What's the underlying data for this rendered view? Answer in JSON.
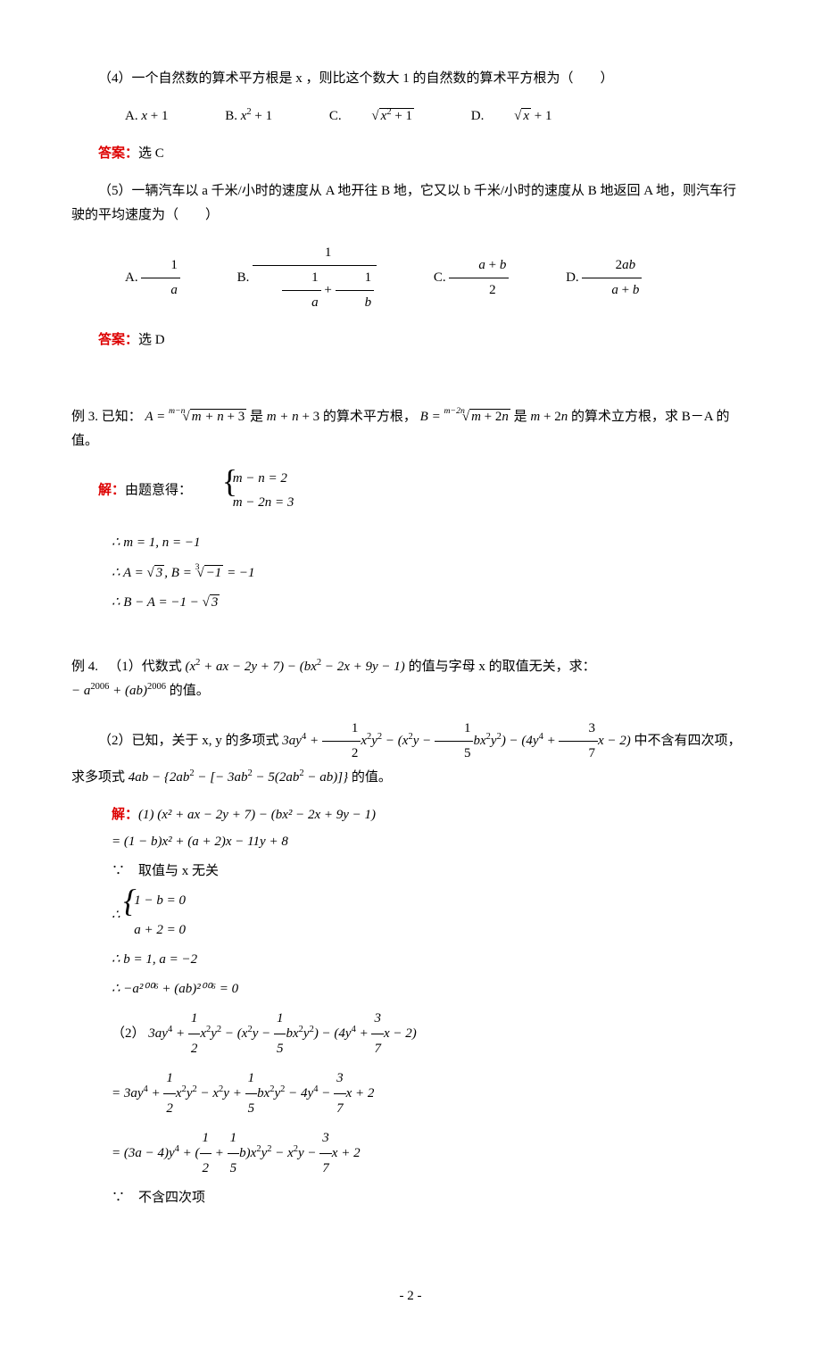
{
  "q4": {
    "text": "（4）一个自然数的算术平方根是 x ，则比这个数大 1 的自然数的算术平方根为（　　）",
    "optA_label": "A.",
    "optB_label": "B.",
    "optC_label": "C.",
    "optD_label": "D.",
    "ans_label": "答案：",
    "ans_text": "选 C"
  },
  "q5": {
    "text": "（5）一辆汽车以 a 千米/小时的速度从 A 地开往 B 地，它又以 b 千米/小时的速度从 B 地返回 A 地，则汽车行驶的平均速度为（　　）",
    "optA_label": "A.",
    "optB_label": "B.",
    "optC_label": "C.",
    "optD_label": "D.",
    "ans_label": "答案：",
    "ans_text": "选 D"
  },
  "ex3": {
    "intro_a": "例 3.  已知：",
    "intro_b": " 是 ",
    "intro_c": " 的算术平方根，",
    "intro_d": " 是 ",
    "intro_e": " 的算术立方根，求 B－A 的值。",
    "sol_label": "解：",
    "sol_pre": "由题意得：",
    "eq1": "m − n = 2",
    "eq2": "m − 2n = 3",
    "line1": "∴ m = 1, n = −1",
    "line3": "∴ B − A = −1 − "
  },
  "ex4": {
    "p1_a": "例 4. 　（1）代数式 ",
    "p1_b": " 的值与字母 x 的取值无关，求：",
    "p1_c": " 的值。",
    "p2_a": "（2）已知，关于 x, y 的多项式 ",
    "p2_b": " 中不含有四次项，求多项式 ",
    "p2_c": " 的值。",
    "sol_label": "解：",
    "s1": "(1) (x² + ax − 2y + 7) − (bx² − 2x + 9y − 1)",
    "s2": "= (1 − b)x² + (a + 2)x − 11y + 8",
    "s3": "∵　取值与 x 无关",
    "s4a": "1 − b = 0",
    "s4b": "a + 2 = 0",
    "s5": "∴ b = 1, a = −2",
    "s6": "∴ −a²⁰⁰⁶ + (ab)²⁰⁰⁶ = 0",
    "s10": "∵　不含四次项"
  },
  "page": "- 2 -",
  "colors": {
    "text": "#000000",
    "accent": "#dd0000",
    "background": "#ffffff"
  }
}
